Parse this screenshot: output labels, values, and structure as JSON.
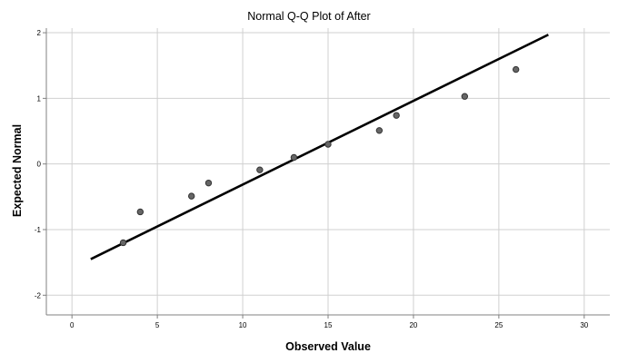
{
  "chart_data": {
    "type": "scatter",
    "title": "Normal Q-Q Plot of After",
    "xlabel": "Observed Value",
    "ylabel": "Expected Normal",
    "xlim": [
      -1.5,
      31.5
    ],
    "ylim": [
      -2.3,
      2.07
    ],
    "xticks": [
      0,
      5,
      10,
      15,
      20,
      25,
      30
    ],
    "yticks": [
      2,
      1,
      0,
      -1,
      -2
    ],
    "grid": true,
    "series": [
      {
        "name": "Observed",
        "x": [
          3,
          4,
          7,
          8,
          11,
          13,
          15,
          18,
          19,
          23,
          26
        ],
        "y": [
          -1.2,
          -0.73,
          -0.49,
          -0.29,
          -0.09,
          0.1,
          0.3,
          0.51,
          0.74,
          1.03,
          1.44
        ]
      }
    ],
    "reference_line": {
      "x": [
        1.1,
        27.9
      ],
      "y": [
        -1.45,
        1.97
      ]
    },
    "colors": {
      "point_fill": "#666666",
      "point_stroke": "#333333",
      "line": "#000000",
      "grid": "#d0d0d0",
      "axis": "#808080"
    }
  }
}
